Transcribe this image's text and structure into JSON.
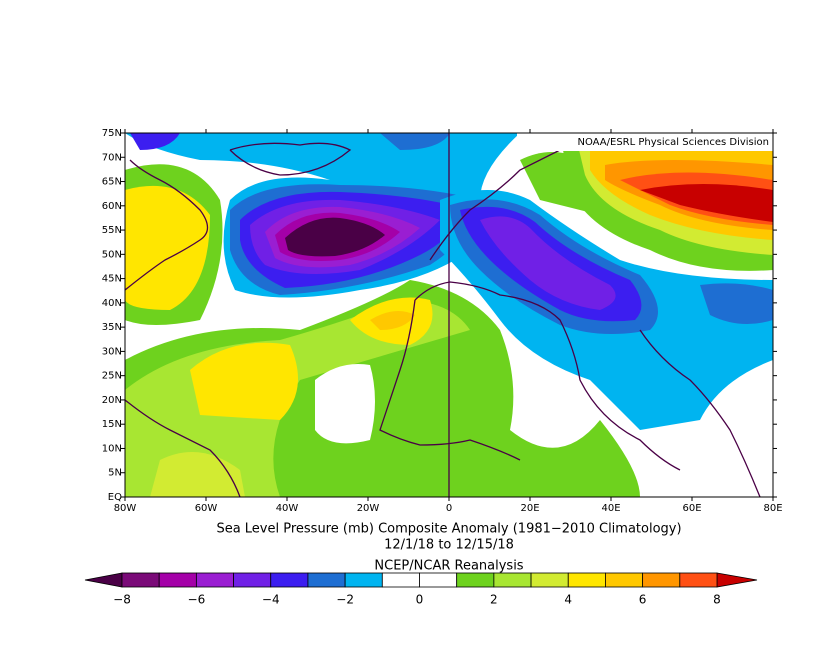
{
  "map": {
    "credit": "NOAA/ESRL Physical Sciences Division",
    "lat_labels": [
      "75N",
      "70N",
      "65N",
      "60N",
      "55N",
      "50N",
      "45N",
      "40N",
      "35N",
      "30N",
      "25N",
      "20N",
      "15N",
      "10N",
      "5N",
      "EQ"
    ],
    "lon_labels": [
      "80W",
      "60W",
      "40W",
      "20W",
      "0",
      "20E",
      "40E",
      "60E",
      "80E"
    ]
  },
  "caption": {
    "title": "Sea Level Pressure (mb) Composite Anomaly (1981−2010 Climatology)",
    "dates": "12/1/18  to 12/15/18",
    "source": "NCEP/NCAR Reanalysis"
  },
  "colorbar": {
    "labels": [
      "−8",
      "−6",
      "−4",
      "−2",
      "0",
      "2",
      "4",
      "6",
      "8"
    ],
    "under_color": "#4a0046",
    "over_color": "#c80000",
    "colors": [
      "#7a0a78",
      "#a400a8",
      "#9a1ed2",
      "#7020e6",
      "#3c1ef0",
      "#1e6ed2",
      "#00b4f0",
      "#ffffff",
      "#ffffff",
      "#6ed21e",
      "#a8e632",
      "#d2eb32",
      "#ffe600",
      "#ffc800",
      "#ff9600",
      "#ff5014"
    ]
  }
}
